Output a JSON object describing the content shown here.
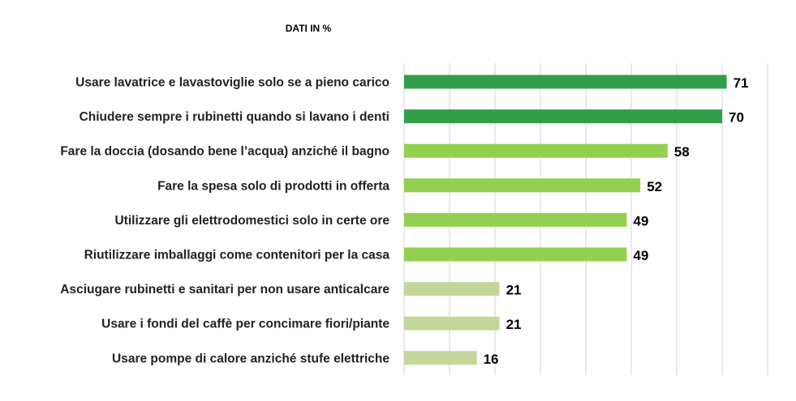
{
  "chart_data": {
    "type": "bar",
    "orientation": "horizontal",
    "title": "DATI IN %",
    "xlabel": "",
    "ylabel": "",
    "xlim": [
      0,
      80
    ],
    "grid": true,
    "categories": [
      "Usare lavatrice e lavastoviglie solo se a pieno carico",
      "Chiudere sempre i rubinetti quando si lavano i denti",
      "Fare la doccia (dosando bene l’acqua) anziché il bagno",
      "Fare la spesa solo di prodotti in offerta",
      "Utilizzare gli elettrodomestici solo in certe ore",
      "Riutilizzare imballaggi come contenitori per la casa",
      "Asciugare rubinetti e sanitari per non usare anticalcare",
      "Usare i fondi del caffè per concimare fiori/piante",
      "Usare pompe di calore anziché stufe elettriche"
    ],
    "values": [
      71,
      70,
      58,
      52,
      49,
      49,
      21,
      21,
      16
    ],
    "colors": [
      "#339e4a",
      "#339e4a",
      "#92d050",
      "#92d050",
      "#92d050",
      "#92d050",
      "#c4d79b",
      "#c4d79b",
      "#c4d79b"
    ],
    "gridline_color": "#e3e3e3"
  }
}
